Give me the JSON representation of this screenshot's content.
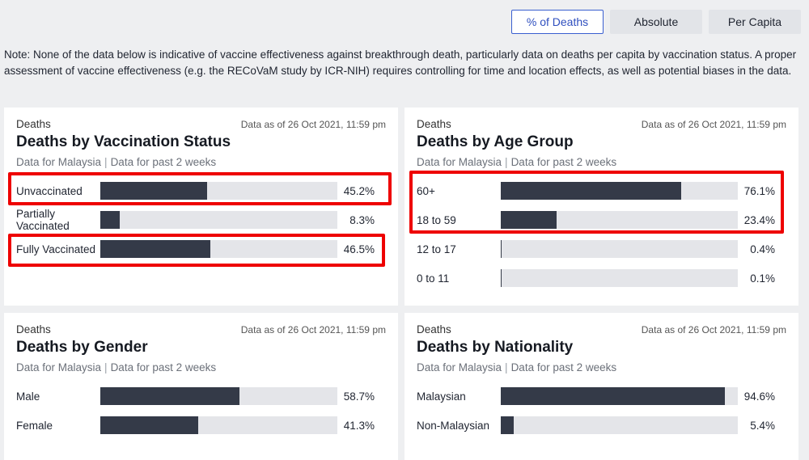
{
  "tabs": [
    {
      "label": "% of Deaths",
      "active": true
    },
    {
      "label": "Absolute",
      "active": false
    },
    {
      "label": "Per Capita",
      "active": false
    }
  ],
  "note": "Note: None of the data below is indicative of vaccine effectiveness against breakthrough death, particularly data on deaths per capita by vaccination status. A proper assessment of vaccine effectiveness (e.g. the RECoVaM study by ICR-NIH) requires controlling for time and location effects, as well as potential biases in the data.",
  "colors": {
    "bar": "#343a48",
    "track": "#e4e5e9",
    "highlight": "#ee0000",
    "active_tab": "#2f4fbf"
  },
  "cards": [
    {
      "category": "Deaths",
      "asof": "Data as of 26 Oct 2021, 11:59 pm",
      "title": "Deaths by Vaccination Status",
      "sub_left": "Data for Malaysia",
      "sub_sep": "|",
      "sub_right": "Data for past 2 weeks",
      "rows": [
        {
          "label": "Unvaccinated",
          "pct_text": "45.2%",
          "value": 45.2,
          "highlighted": true
        },
        {
          "label": "Partially Vaccinated",
          "pct_text": "8.3%",
          "value": 8.3,
          "highlighted": false
        },
        {
          "label": "Fully Vaccinated",
          "pct_text": "46.5%",
          "value": 46.5,
          "highlighted": true
        }
      ]
    },
    {
      "category": "Deaths",
      "asof": "Data as of 26 Oct 2021, 11:59 pm",
      "title": "Deaths by Age Group",
      "sub_left": "Data for Malaysia",
      "sub_sep": "|",
      "sub_right": "Data for past 2 weeks",
      "rows": [
        {
          "label": "60+",
          "pct_text": "76.1%",
          "value": 76.1,
          "highlighted": true
        },
        {
          "label": "18 to 59",
          "pct_text": "23.4%",
          "value": 23.4,
          "highlighted": true
        },
        {
          "label": "12 to 17",
          "pct_text": "0.4%",
          "value": 0.4,
          "highlighted": false
        },
        {
          "label": "0 to 11",
          "pct_text": "0.1%",
          "value": 0.1,
          "highlighted": false
        }
      ]
    },
    {
      "category": "Deaths",
      "asof": "Data as of 26 Oct 2021, 11:59 pm",
      "title": "Deaths by Gender",
      "sub_left": "Data for Malaysia",
      "sub_sep": "|",
      "sub_right": "Data for past 2 weeks",
      "rows": [
        {
          "label": "Male",
          "pct_text": "58.7%",
          "value": 58.7,
          "highlighted": false
        },
        {
          "label": "Female",
          "pct_text": "41.3%",
          "value": 41.3,
          "highlighted": false
        }
      ]
    },
    {
      "category": "Deaths",
      "asof": "Data as of 26 Oct 2021, 11:59 pm",
      "title": "Deaths by Nationality",
      "sub_left": "Data for Malaysia",
      "sub_sep": "|",
      "sub_right": "Data for past 2 weeks",
      "rows": [
        {
          "label": "Malaysian",
          "pct_text": "94.6%",
          "value": 94.6,
          "highlighted": false
        },
        {
          "label": "Non-Malaysian",
          "pct_text": "5.4%",
          "value": 5.4,
          "highlighted": false
        }
      ]
    }
  ]
}
